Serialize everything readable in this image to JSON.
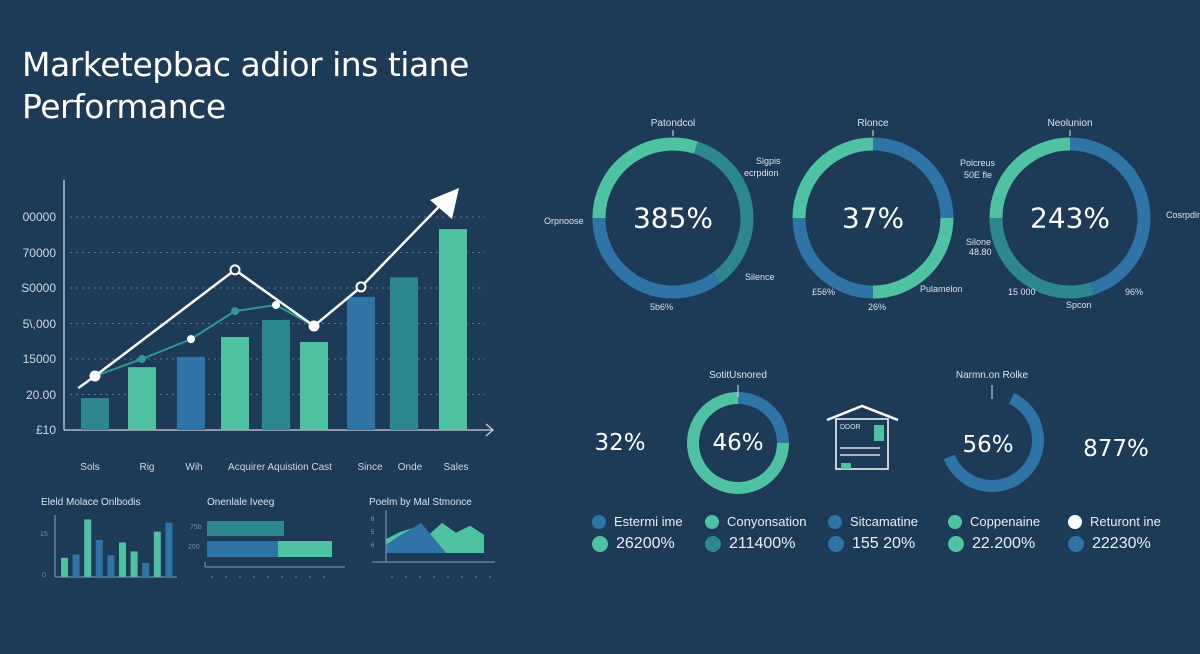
{
  "title": {
    "line1": "Marketepbac adior ins tiane",
    "line2": "Performance"
  },
  "colors": {
    "background": "#1d3a57",
    "green": "#4fc3a1",
    "teal": "#2d8790",
    "blue": "#2e74a6",
    "white": "#ffffff"
  },
  "chart_data": [
    {
      "type": "bar",
      "title": "",
      "y_tick_labels": [
        "£10",
        "20.00",
        "15000",
        "5\\,000",
        "S0000",
        "70000",
        "00000"
      ],
      "categories_labels": [
        "Sols",
        "Rig",
        "Wih",
        "Acquirer Aquistion Cast",
        "Since",
        "Onde",
        "Sales"
      ],
      "grid": true,
      "values_in_tick_units": [
        0.9,
        1.77,
        2.06,
        2.62,
        3.1,
        2.48,
        3.75,
        4.3,
        5.66
      ],
      "bar_colors": [
        "teal",
        "green",
        "blue",
        "green",
        "teal",
        "green",
        "blue",
        "teal",
        "green"
      ],
      "series": [
        {
          "style": "white-line-with-arrow",
          "points": [
            [
              -0.35,
              1.18
            ],
            [
              0,
              1.52
            ],
            [
              3,
              4.51
            ],
            [
              5,
              2.93
            ],
            [
              6,
              4.03
            ],
            [
              8,
              6.7
            ]
          ]
        },
        {
          "style": "teal-line",
          "points": [
            [
              0,
              1.52
            ],
            [
              1,
              2.0
            ],
            [
              2,
              2.56
            ],
            [
              3,
              3.35
            ],
            [
              4,
              3.52
            ],
            [
              5,
              2.93
            ]
          ]
        }
      ]
    },
    {
      "type": "donut",
      "items": [
        {
          "center": "385%",
          "top": "Patondcol",
          "labels": [
            "Sigpis",
            "ecrpdion",
            "Silence",
            "5b6%",
            "Orpnoose"
          ],
          "segments": [
            {
              "color": "green",
              "frac": 0.3
            },
            {
              "color": "teal",
              "frac": 0.35
            },
            {
              "color": "blue",
              "frac": 0.35
            }
          ]
        },
        {
          "center": "37%",
          "top": "Rlonce",
          "labels": [
            "Pulamelon",
            "26%",
            "£56%",
            "Silone",
            "48.80"
          ],
          "segments": [
            {
              "color": "blue",
              "frac": 0.25
            },
            {
              "color": "green",
              "frac": 0.25
            },
            {
              "color": "blue",
              "frac": 0.25
            },
            {
              "color": "green",
              "frac": 0.25
            }
          ]
        },
        {
          "center": "243%",
          "top": "Neolunion",
          "labels": [
            "Polcreus",
            "50E fle",
            "Cosrpdin",
            "96%",
            "Spcon",
            "15 000"
          ],
          "segments": [
            {
              "color": "blue",
              "frac": 0.45
            },
            {
              "color": "teal",
              "frac": 0.3
            },
            {
              "color": "green",
              "frac": 0.25
            }
          ]
        }
      ]
    },
    {
      "type": "kpi",
      "items": [
        {
          "value": "32%"
        },
        {
          "value": "46%",
          "label": "SotitUsnored",
          "segments": [
            {
              "color": "blue",
              "frac": 0.25
            },
            {
              "color": "green",
              "frac": 0.75
            }
          ]
        },
        {
          "icon": "house-document-icon",
          "icon_text": "DDOR"
        },
        {
          "value": "56%",
          "label": "Narmn.on Rolke",
          "fill": 0.62
        },
        {
          "value": "877%"
        }
      ]
    },
    {
      "type": "bar",
      "title": "Eleld Molace Onlbodis",
      "y_tick_labels": [
        "0",
        "15"
      ],
      "values": [
        3,
        3.5,
        9,
        5.8,
        3.4,
        5.4,
        4,
        2.2,
        7.1,
        8.5
      ],
      "bar_colors": [
        "green",
        "blue",
        "green",
        "blue",
        "blue",
        "green",
        "green",
        "blue",
        "green",
        "blue"
      ]
    },
    {
      "type": "bar",
      "orientation": "horizontal",
      "title": "Onenlale Iveeg",
      "categories_labels": [
        "75b",
        "200"
      ],
      "series": [
        {
          "color": "teal",
          "values": [
            0.62,
            0.0
          ]
        },
        {
          "color": "blue",
          "values": [
            0,
            0.58
          ]
        },
        {
          "color": "green",
          "values": [
            0,
            0.44
          ]
        }
      ]
    },
    {
      "type": "area",
      "title": "Poelm by Mal Stmonce",
      "y_tick_labels": [
        "8",
        "5",
        "6"
      ],
      "series": [
        {
          "color": "green",
          "values": [
            2,
            3,
            3.6,
            2.5,
            4.3,
            2.9,
            3.9,
            2.6
          ]
        },
        {
          "color": "blue",
          "values": [
            1.2,
            2.5,
            4.3,
            2.5,
            0,
            0,
            0,
            0
          ]
        }
      ]
    }
  ],
  "legend": [
    {
      "label": "Estermi ime",
      "color": "blue",
      "value": "26200%",
      "value_color": "green"
    },
    {
      "label": "Conyonsation",
      "color": "green",
      "value": "211400%",
      "value_color": "teal"
    },
    {
      "label": "Sitcamatine",
      "color": "blue",
      "value": "155 20%",
      "value_color": "blue"
    },
    {
      "label": "Coppenaine",
      "color": "green",
      "value": "22.200%",
      "value_color": "green"
    },
    {
      "label": "Returont ine",
      "color": "white",
      "value": "22230%",
      "value_color": "blue"
    }
  ]
}
